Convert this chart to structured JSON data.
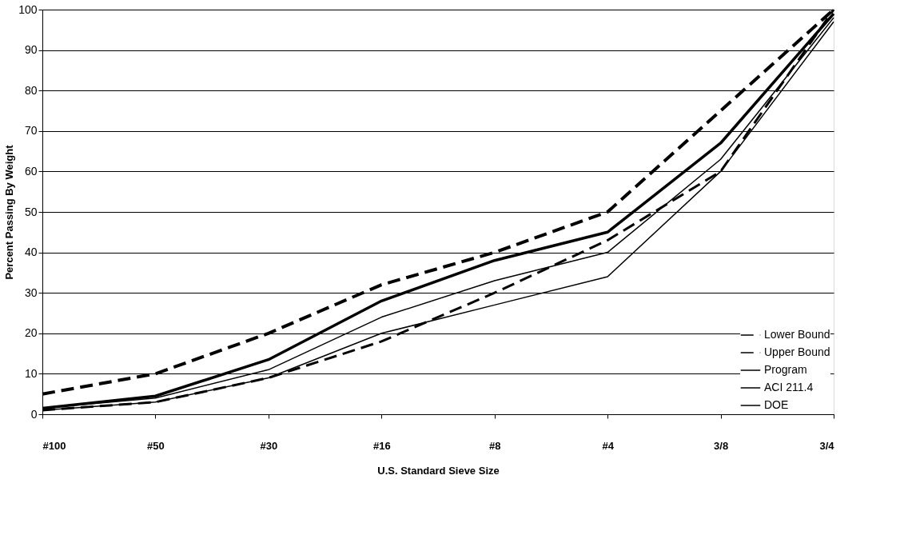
{
  "chart_data": {
    "type": "line",
    "xlabel": "U.S. Standard Sieve Size",
    "ylabel": "Percent Passing By Weight",
    "categories": [
      "#100",
      "#50",
      "#30",
      "#16",
      "#8",
      "#4",
      "3/8",
      "3/4"
    ],
    "series": [
      {
        "name": "Lower Bound",
        "color": "#000000",
        "line_style": "dashed",
        "values": [
          1,
          3,
          9,
          18,
          30,
          43,
          60,
          100
        ]
      },
      {
        "name": "Upper Bound",
        "color": "#000000",
        "line_style": "dashed",
        "values": [
          5,
          10,
          20,
          32,
          40,
          50,
          75,
          100
        ]
      },
      {
        "name": "Program",
        "color": "#000000",
        "line_style": "solid",
        "values": [
          1.5,
          4.5,
          13.5,
          28,
          38,
          45,
          67,
          99
        ]
      },
      {
        "name": "ACI 211.4",
        "color": "#000000",
        "line_style": "solid",
        "values": [
          1.5,
          4,
          11,
          24,
          33,
          40,
          63,
          98
        ]
      },
      {
        "name": "DOE",
        "color": "#000000",
        "line_style": "solid",
        "values": [
          1,
          3,
          9,
          20,
          27,
          34,
          60,
          97
        ]
      }
    ],
    "ylim": [
      0,
      100
    ],
    "yticks": [
      0,
      10,
      20,
      30,
      40,
      50,
      60,
      70,
      80,
      90,
      100
    ],
    "grid": "y",
    "legend": "bottom right",
    "marker": "none"
  }
}
